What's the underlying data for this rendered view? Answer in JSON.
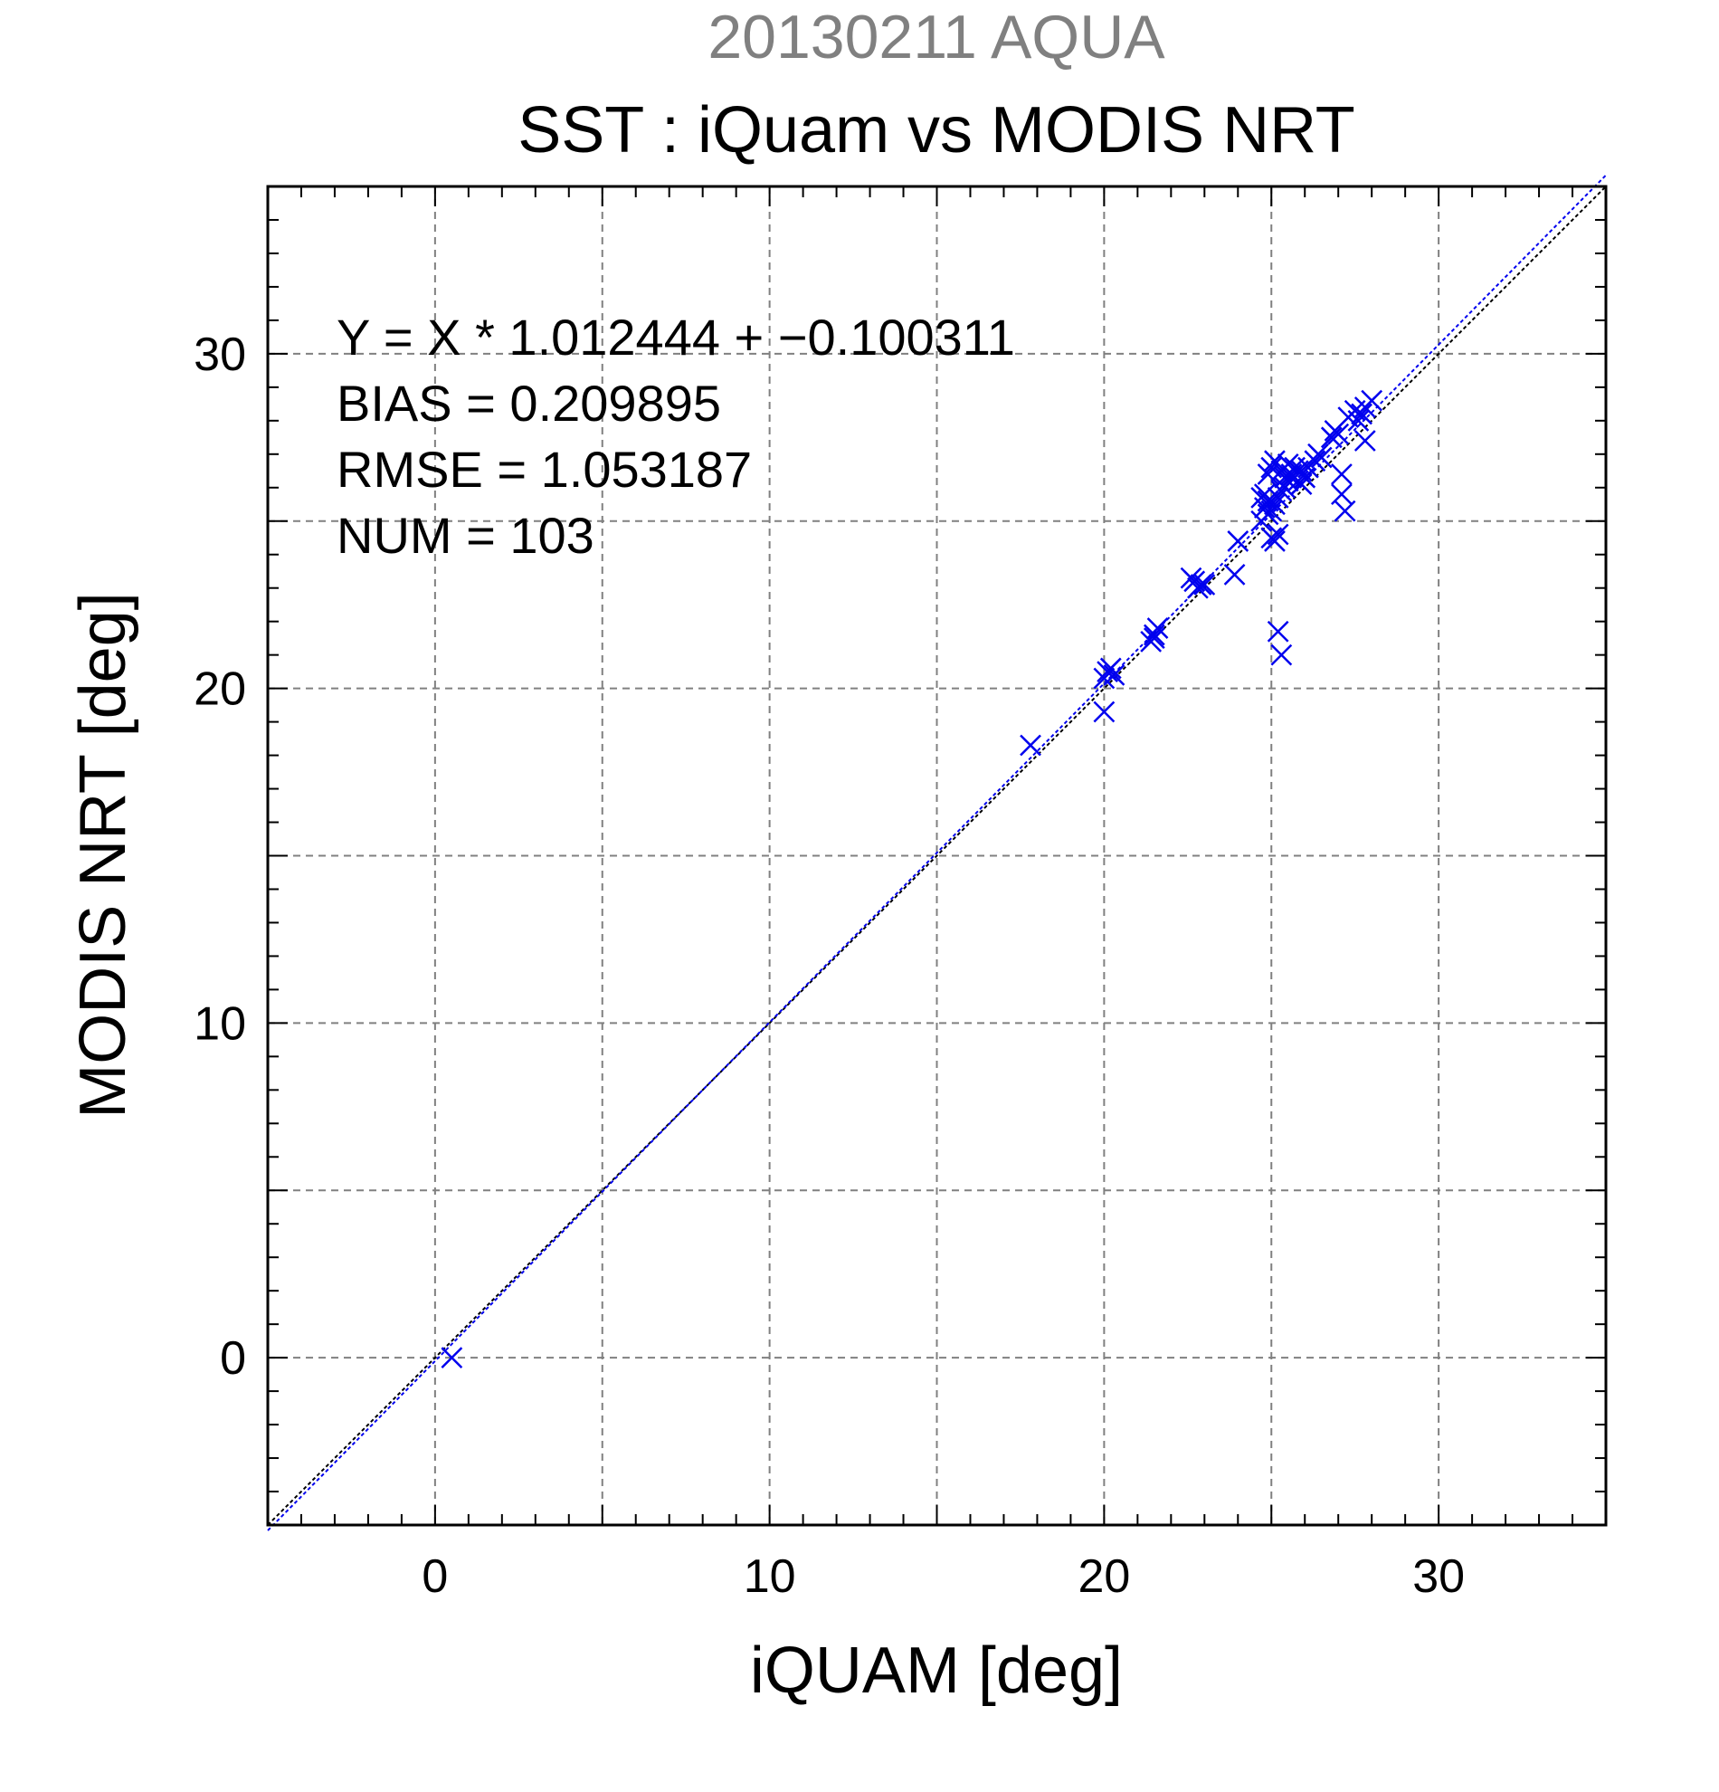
{
  "header": {
    "date_title": "20130211 AQUA",
    "main_title": "SST : iQuam vs MODIS NRT"
  },
  "stats": {
    "line1": "Y = X * 1.012444 + −0.100311",
    "line2": "BIAS = 0.209895",
    "line3": "RMSE = 1.053187",
    "line4": "NUM = 103"
  },
  "colors": {
    "series": "#0000ee",
    "grid": "#808080",
    "reference_line": "#000000",
    "date_title": "#808080"
  },
  "chart_data": {
    "type": "scatter",
    "title": "SST : iQuam vs MODIS NRT",
    "subtitle": "20130211 AQUA",
    "xlabel": "iQUAM [deg]",
    "ylabel": "MODIS NRT [deg]",
    "xlim": [
      -5,
      35
    ],
    "ylim": [
      -5,
      35
    ],
    "xticks": [
      0,
      10,
      20,
      30
    ],
    "yticks": [
      0,
      10,
      20,
      30
    ],
    "grid": true,
    "grid_step": 5,
    "marker": "x",
    "lines": [
      {
        "kind": "identity",
        "slope": 1,
        "intercept": 0,
        "color": "#000000"
      },
      {
        "kind": "fit",
        "slope": 1.012444,
        "intercept": -0.100311,
        "color": "#0000ee"
      }
    ],
    "series": [
      {
        "x": [
          0.5,
          17.8,
          20.0,
          20.0,
          20.1,
          20.2,
          20.3,
          21.4,
          21.5,
          21.6,
          21.5,
          22.6,
          22.7,
          22.8,
          22.9,
          23.0,
          23.9,
          24.0,
          24.7,
          24.8,
          24.9,
          24.8,
          24.7,
          24.9,
          25.0,
          25.1,
          25.2,
          25.3,
          25.0,
          25.1,
          25.2,
          24.9,
          25.0,
          25.1,
          25.3,
          25.4,
          25.5,
          25.3,
          25.2,
          25.4,
          25.6,
          25.7,
          25.8,
          25.5,
          25.6,
          25.9,
          26.0,
          26.1,
          25.9,
          25.8,
          26.3,
          26.4,
          26.5,
          26.8,
          26.9,
          27.0,
          27.1,
          27.1,
          27.2,
          27.3,
          27.5,
          27.6,
          27.7,
          27.8,
          27.8,
          28.0
        ],
        "y": [
          0.0,
          18.3,
          19.3,
          20.3,
          20.5,
          20.6,
          20.4,
          21.4,
          21.6,
          21.8,
          21.5,
          23.3,
          23.2,
          23.0,
          23.1,
          23.1,
          23.4,
          24.4,
          25.7,
          25.4,
          25.2,
          25.8,
          25.0,
          25.6,
          25.3,
          25.5,
          25.7,
          25.9,
          24.5,
          24.4,
          24.6,
          26.4,
          26.6,
          26.8,
          26.5,
          26.3,
          26.2,
          21.0,
          21.7,
          26.0,
          26.4,
          26.6,
          26.5,
          26.7,
          26.3,
          26.1,
          26.3,
          26.6,
          26.5,
          26.2,
          26.8,
          27.0,
          26.9,
          27.5,
          27.7,
          27.6,
          26.4,
          25.8,
          25.3,
          28.1,
          28.3,
          28.0,
          28.2,
          28.4,
          27.4,
          28.6
        ]
      }
    ]
  }
}
